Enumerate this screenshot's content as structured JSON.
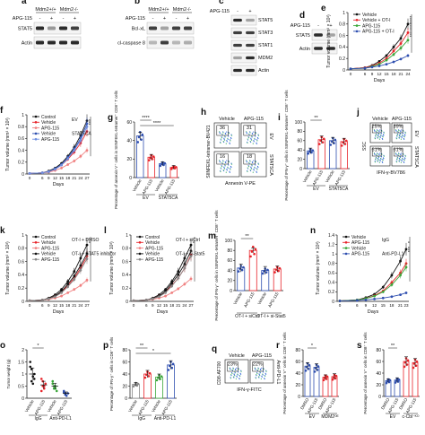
{
  "colors": {
    "black": "#111111",
    "red": "#e8242a",
    "blue": "#2f4fb0",
    "green": "#3aa639",
    "pink": "#f08080",
    "grey": "#888888",
    "band": "#2b2b2b",
    "light": "#dddddd"
  },
  "panels": {
    "a": {
      "letter": "a",
      "genotypes": [
        "Mdm2+/+",
        "Mdm2-/-"
      ],
      "treatment": "APG-115",
      "signs": [
        "-",
        "+",
        "-",
        "+"
      ],
      "bands": [
        "STAT5",
        "Actin"
      ]
    },
    "b": {
      "letter": "b",
      "genotypes": [
        "Mdm2+/+",
        "Mdm2-/-"
      ],
      "treatment": "APG-115",
      "signs": [
        "-",
        "+",
        "-",
        "+"
      ],
      "bands": [
        "Bcl-xL",
        "cl-caspase 8"
      ]
    },
    "c": {
      "letter": "c",
      "treatment": "APG-115",
      "signs": [
        "-",
        "+"
      ],
      "bands": [
        "STAT5",
        "STAT3",
        "STAT1",
        "MDM2",
        "Actin"
      ]
    },
    "d": {
      "letter": "d",
      "treatment": "APG-115",
      "signs": [
        "-",
        "+"
      ],
      "bands": [
        "STAT5",
        "Actin"
      ]
    },
    "e": {
      "letter": "e",
      "ylabel": "Tumor volume (mm³ × 10³)",
      "xlabel": "Days",
      "sig": [
        "****",
        "****",
        "***"
      ]
    },
    "f": {
      "letter": "f",
      "ylabel": "Tumor volume (mm³ × 10³)",
      "xlabel": "Days",
      "group_labels": [
        "EV",
        "STAT5CA"
      ],
      "sig": [
        "***"
      ]
    },
    "g": {
      "letter": "g",
      "ylabel": "Percentage of annexin V⁺ cells in SIINFEKL-tetramer⁺ CD8⁺ T cells",
      "tick_labels": [
        "Vehicle",
        "APG-115",
        "Vehicle",
        "APG-115"
      ],
      "group_labels": [
        "EV",
        "STAT5CA"
      ],
      "sig": [
        "****",
        "****"
      ]
    },
    "h": {
      "letter": "h",
      "cols": [
        "Vehicle",
        "APG-115"
      ],
      "rows": [
        "EV",
        "STAT5CA"
      ],
      "xlabel": "Annexin V-PE",
      "ylabel": "SIINFEKL-tetramer-BV421",
      "quad_values": [
        "36",
        "31",
        "16",
        "18"
      ]
    },
    "i": {
      "letter": "i",
      "ylabel": "Percentage of IFN-γ⁺ cells in SIINFEKL-tetramer⁺ CD8⁺ T cells",
      "tick_labels": [
        "Vehicle",
        "APG-115",
        "Vehicle",
        "APG-115"
      ],
      "group_labels": [
        "EV",
        "STAT5CA"
      ],
      "sig": [
        "**"
      ]
    },
    "j": {
      "letter": "j",
      "cols": [
        "Vehicle",
        "APG-115"
      ],
      "rows": [
        "EV",
        "STAT5CA"
      ],
      "xlabel": "IFN-γ-BV786",
      "ylabel": "SSC",
      "quad_values": [
        "25%",
        "39%",
        "61%",
        "61%"
      ]
    },
    "k": {
      "letter": "k",
      "ylabel": "Tumor volume (mm³ × 10³)",
      "xlabel": "Days",
      "group_labels": [
        "OT-I + DMSO",
        "OT-I + STAT5 inhibitor"
      ],
      "sig": [
        "*"
      ]
    },
    "l": {
      "letter": "l",
      "ylabel": "Tumor volume (mm³ × 10³)",
      "xlabel": "Days",
      "group_labels": [
        "OT-I + siCtrl",
        "OT-I + si-Stat5"
      ],
      "sig": [
        "*"
      ]
    },
    "m": {
      "letter": "m",
      "ylabel": "Percentage of IFN-γ⁺ cells in SIINFEKL-tetramer⁺ CD8⁺ T cells",
      "tick_labels": [
        "Vehicle",
        "APG-115",
        "Vehicle",
        "APG-115"
      ],
      "group_labels": [
        "OT-I + siCtrl",
        "OT-I + si-Stat5"
      ],
      "sig": [
        "**"
      ]
    },
    "n": {
      "letter": "n",
      "ylabel": "Tumor volume (mm³ × 10³)",
      "xlabel": "Days",
      "group_labels": [
        "IgG",
        "Anti-PD-L1"
      ],
      "sig": [
        "*",
        "***"
      ]
    },
    "o": {
      "letter": "o",
      "ylabel": "Tumor weight (g)",
      "tick_labels": [
        "Vehicle",
        "APG-115",
        "Vehicle",
        "APG-115"
      ],
      "group_labels": [
        "IgG",
        "Anti-PD-L1"
      ],
      "sig": [
        "*"
      ]
    },
    "p": {
      "letter": "p",
      "ylabel": "Percentage of IFN-γ⁺ cells in CD8⁺ T cells",
      "tick_labels": [
        "Vehicle",
        "APG-115",
        "Vehicle",
        "APG-115"
      ],
      "group_labels": [
        "IgG",
        "Anti-PD-L1"
      ],
      "sig": [
        "**",
        "*"
      ]
    },
    "q": {
      "letter": "q",
      "cols": [
        "Vehicle",
        "APG-115"
      ],
      "xlabel": "IFN-γ-FITC",
      "ylabel": "CD8-AF700",
      "side_label": "Anti-PD-L1",
      "quad_values": [
        "23%",
        "22%",
        "23%",
        "48%"
      ]
    },
    "r": {
      "letter": "r",
      "ylabel": "Percentage of annexin V⁺ cells in CD8⁺ T cells",
      "tick_labels": [
        "DMSO",
        "APG-115",
        "DMSO",
        "APG-115"
      ],
      "group_labels": [
        "EV",
        "MDM2ᴼᴱ"
      ],
      "sig": [
        "*"
      ]
    },
    "s": {
      "letter": "s",
      "ylabel": "Percentage of annexin V⁺ cells in CD8⁺ T cells",
      "tick_labels": [
        "DMSO",
        "APG-115",
        "DMSO",
        "APG-115"
      ],
      "group_labels": [
        "EV",
        "c-Cbl⁻ᴷᴼ"
      ],
      "sig": [
        "**"
      ]
    }
  },
  "chart_data": [
    {
      "panel": "e",
      "type": "line",
      "x": [
        0,
        6,
        9,
        12,
        15,
        18,
        21,
        24
      ],
      "series": [
        {
          "name": "Vehicle",
          "color": "#111111",
          "values": [
            0.02,
            0.04,
            0.08,
            0.15,
            0.25,
            0.4,
            0.55,
            0.8
          ]
        },
        {
          "name": "Vehicle + OT-I",
          "color": "#e8242a",
          "values": [
            0.02,
            0.04,
            0.07,
            0.12,
            0.2,
            0.33,
            0.46,
            0.65
          ]
        },
        {
          "name": "APG-115",
          "color": "#3aa639",
          "values": [
            0.02,
            0.03,
            0.06,
            0.1,
            0.17,
            0.27,
            0.38,
            0.52
          ]
        },
        {
          "name": "APG-115 + OT-I",
          "color": "#2f4fb0",
          "values": [
            0.02,
            0.03,
            0.05,
            0.07,
            0.1,
            0.14,
            0.19,
            0.25
          ]
        }
      ],
      "ylim": [
        0,
        1
      ],
      "yticks": [
        0,
        0.2,
        0.4,
        0.6,
        0.8,
        1
      ]
    },
    {
      "panel": "f",
      "type": "line",
      "x": [
        0,
        6,
        9,
        12,
        15,
        18,
        21,
        24,
        27
      ],
      "series": [
        {
          "name": "Control",
          "color": "#111111",
          "values": [
            0.01,
            0.02,
            0.05,
            0.1,
            0.18,
            0.3,
            0.45,
            0.65,
            0.9
          ]
        },
        {
          "name": "Vehicle",
          "color": "#e8242a",
          "values": [
            0.01,
            0.02,
            0.04,
            0.08,
            0.15,
            0.25,
            0.37,
            0.52,
            0.72
          ]
        },
        {
          "name": "APG-115",
          "color": "#f08080",
          "values": [
            0.01,
            0.02,
            0.03,
            0.06,
            0.1,
            0.16,
            0.22,
            0.3,
            0.4
          ]
        },
        {
          "name": "Vehicle",
          "color": "#2f4fb0",
          "values": [
            0.01,
            0.02,
            0.04,
            0.09,
            0.16,
            0.28,
            0.42,
            0.6,
            0.85
          ]
        },
        {
          "name": "APG-115",
          "color": "#6f8fe0",
          "values": [
            0.01,
            0.02,
            0.04,
            0.08,
            0.15,
            0.26,
            0.4,
            0.57,
            0.8
          ]
        }
      ],
      "ylim": [
        0,
        1
      ],
      "yticks": [
        0,
        0.2,
        0.4,
        0.6,
        0.8,
        1
      ]
    },
    {
      "panel": "g",
      "type": "bar",
      "categories": [
        "Vehicle",
        "APG-115",
        "Vehicle",
        "APG-115"
      ],
      "values": [
        45,
        22,
        15,
        11
      ],
      "errors": [
        4,
        3,
        2,
        2
      ],
      "colors": [
        "#2f4fb0",
        "#e8242a",
        "#2f4fb0",
        "#e8242a"
      ],
      "ylim": [
        0,
        60
      ],
      "yticks": [
        0,
        20,
        40,
        60
      ]
    },
    {
      "panel": "i",
      "type": "bar",
      "categories": [
        "Vehicle",
        "APG-115",
        "Vehicle",
        "APG-115"
      ],
      "values": [
        38,
        62,
        60,
        58
      ],
      "errors": [
        6,
        8,
        7,
        7
      ],
      "colors": [
        "#2f4fb0",
        "#e8242a",
        "#2f4fb0",
        "#e8242a"
      ],
      "ylim": [
        0,
        100
      ],
      "yticks": [
        0,
        20,
        40,
        60,
        80,
        100
      ]
    },
    {
      "panel": "k",
      "type": "line",
      "x": [
        0,
        6,
        9,
        12,
        15,
        18,
        21,
        24,
        27
      ],
      "series": [
        {
          "name": "Control",
          "color": "#111111",
          "values": [
            0.01,
            0.02,
            0.05,
            0.1,
            0.18,
            0.3,
            0.45,
            0.65,
            0.85
          ]
        },
        {
          "name": "Vehicle",
          "color": "#e8242a",
          "values": [
            0.01,
            0.02,
            0.04,
            0.08,
            0.14,
            0.24,
            0.35,
            0.5,
            0.68
          ]
        },
        {
          "name": "APG-115",
          "color": "#f08080",
          "values": [
            0.01,
            0.02,
            0.03,
            0.05,
            0.08,
            0.13,
            0.18,
            0.24,
            0.32
          ]
        },
        {
          "name": "Vehicle",
          "color": "#111111",
          "values": [
            0.01,
            0.02,
            0.04,
            0.08,
            0.15,
            0.26,
            0.38,
            0.54,
            0.72
          ]
        },
        {
          "name": "APG-115",
          "color": "#888888",
          "values": [
            0.01,
            0.02,
            0.04,
            0.07,
            0.13,
            0.22,
            0.33,
            0.47,
            0.64
          ]
        }
      ],
      "ylim": [
        0,
        1
      ],
      "yticks": [
        0,
        0.2,
        0.4,
        0.6,
        0.8,
        1
      ]
    },
    {
      "panel": "l",
      "type": "line",
      "x": [
        0,
        6,
        9,
        12,
        15,
        18,
        21,
        24,
        27
      ],
      "series": [
        {
          "name": "Control",
          "color": "#111111",
          "values": [
            0.01,
            0.02,
            0.05,
            0.1,
            0.18,
            0.3,
            0.45,
            0.65,
            0.85
          ]
        },
        {
          "name": "Vehicle",
          "color": "#e8242a",
          "values": [
            0.01,
            0.02,
            0.04,
            0.08,
            0.14,
            0.24,
            0.35,
            0.5,
            0.7
          ]
        },
        {
          "name": "APG-115",
          "color": "#f08080",
          "values": [
            0.01,
            0.02,
            0.03,
            0.05,
            0.08,
            0.13,
            0.19,
            0.26,
            0.34
          ]
        },
        {
          "name": "Vehicle",
          "color": "#111111",
          "values": [
            0.01,
            0.02,
            0.04,
            0.08,
            0.15,
            0.27,
            0.4,
            0.56,
            0.76
          ]
        },
        {
          "name": "APG-115",
          "color": "#888888",
          "values": [
            0.01,
            0.02,
            0.04,
            0.07,
            0.13,
            0.23,
            0.35,
            0.5,
            0.68
          ]
        }
      ],
      "ylim": [
        0,
        1
      ],
      "yticks": [
        0,
        0.2,
        0.4,
        0.6,
        0.8,
        1
      ]
    },
    {
      "panel": "m",
      "type": "bar",
      "categories": [
        "Vehicle",
        "APG-115",
        "Vehicle",
        "APG-115"
      ],
      "values": [
        45,
        80,
        40,
        43
      ],
      "errors": [
        8,
        5,
        8,
        6
      ],
      "colors": [
        "#2f4fb0",
        "#e8242a",
        "#2f4fb0",
        "#e8242a"
      ],
      "ylim": [
        0,
        100
      ],
      "yticks": [
        0,
        20,
        40,
        60,
        80,
        100
      ]
    },
    {
      "panel": "n",
      "type": "line",
      "x": [
        0,
        6,
        9,
        12,
        15,
        18,
        21,
        23
      ],
      "series": [
        {
          "name": "Vehicle",
          "color": "#111111",
          "values": [
            0.01,
            0.03,
            0.08,
            0.15,
            0.3,
            0.55,
            0.85,
            1.1
          ]
        },
        {
          "name": "APG-115",
          "color": "#e8242a",
          "values": [
            0.01,
            0.03,
            0.06,
            0.12,
            0.22,
            0.4,
            0.6,
            0.8
          ]
        },
        {
          "name": "Vehicle",
          "color": "#3aa639",
          "values": [
            0.01,
            0.03,
            0.06,
            0.11,
            0.2,
            0.35,
            0.55,
            0.72
          ]
        },
        {
          "name": "APG-115",
          "color": "#2f4fb0",
          "values": [
            0.01,
            0.02,
            0.03,
            0.05,
            0.07,
            0.1,
            0.14,
            0.18
          ]
        }
      ],
      "ylim": [
        0,
        1.4
      ],
      "yticks": [
        0,
        0.2,
        0.4,
        0.6,
        0.8,
        1,
        1.2,
        1.4
      ]
    },
    {
      "panel": "o",
      "type": "scatter",
      "categories": [
        "Vehicle",
        "APG-115",
        "Vehicle",
        "APG-115"
      ],
      "values": [
        1.0,
        0.55,
        0.5,
        0.2
      ],
      "errors": [
        0.25,
        0.15,
        0.12,
        0.06
      ],
      "colors": [
        "#111111",
        "#e8242a",
        "#3aa639",
        "#2f4fb0"
      ],
      "points": [
        [
          1.5,
          1.2,
          0.9,
          0.8,
          1.3,
          0.7,
          0.6,
          1.0
        ],
        [
          0.8,
          0.5,
          0.4,
          0.6,
          0.3,
          0.7,
          0.5
        ],
        [
          0.6,
          0.4,
          0.5,
          0.3,
          0.7,
          0.5,
          0.4
        ],
        [
          0.3,
          0.2,
          0.1,
          0.2,
          0.25,
          0.15
        ]
      ],
      "ylim": [
        0,
        2
      ],
      "yticks": [
        0,
        0.5,
        1,
        1.5,
        2
      ]
    },
    {
      "panel": "p",
      "type": "bar",
      "categories": [
        "Vehicle",
        "APG-115",
        "Vehicle",
        "APG-115"
      ],
      "values": [
        23,
        40,
        35,
        55
      ],
      "errors": [
        3,
        6,
        5,
        7
      ],
      "colors": [
        "#888888",
        "#e8242a",
        "#3aa639",
        "#2f4fb0"
      ],
      "ylim": [
        0,
        80
      ],
      "yticks": [
        0,
        20,
        40,
        60,
        80
      ]
    },
    {
      "panel": "r",
      "type": "bar",
      "categories": [
        "DMSO",
        "APG-115",
        "DMSO",
        "APG-115"
      ],
      "values": [
        52,
        50,
        33,
        34
      ],
      "errors": [
        6,
        6,
        4,
        5
      ],
      "colors": [
        "#2f4fb0",
        "#2f4fb0",
        "#e8242a",
        "#e8242a"
      ],
      "ylim": [
        0,
        80
      ],
      "yticks": [
        0,
        20,
        40,
        60,
        80
      ]
    },
    {
      "panel": "s",
      "type": "bar",
      "categories": [
        "DMSO",
        "APG-115",
        "DMSO",
        "APG-115"
      ],
      "values": [
        27,
        28,
        60,
        58
      ],
      "errors": [
        3,
        4,
        8,
        7
      ],
      "colors": [
        "#2f4fb0",
        "#2f4fb0",
        "#e8242a",
        "#e8242a"
      ],
      "ylim": [
        0,
        80
      ],
      "yticks": [
        0,
        20,
        40,
        60,
        80
      ]
    }
  ]
}
